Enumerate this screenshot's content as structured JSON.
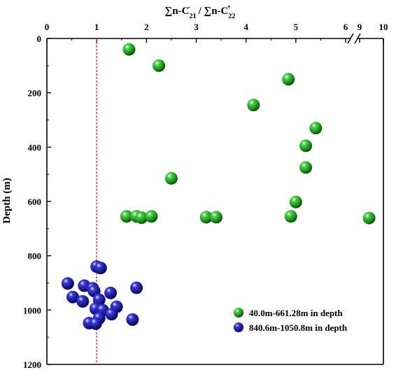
{
  "chart_data": {
    "type": "scatter",
    "title_parts": {
      "sum1": "∑n-C",
      "sub1": "21",
      "sup1": "-",
      "slash": " / ",
      "sum2": "∑n-C",
      "sub2": "22",
      "sup2": "+"
    },
    "ylabel": "Depth  (m)",
    "x_axis": {
      "position": "top",
      "break_between": [
        6,
        9
      ],
      "ticks": [
        0,
        1,
        2,
        3,
        4,
        5,
        6,
        9,
        10
      ],
      "tick_labels": [
        "0",
        "1",
        "2",
        "3",
        "4",
        "5",
        "6",
        "9",
        "10"
      ]
    },
    "y_axis": {
      "ylim": [
        0,
        1200
      ],
      "inverted": true,
      "ticks": [
        0,
        200,
        400,
        600,
        800,
        1000,
        1200
      ],
      "tick_labels": [
        "0",
        "200",
        "400",
        "600",
        "800",
        "1000",
        "1200"
      ]
    },
    "reference_line": {
      "x": 1,
      "style": "dashed",
      "color": "#d62728"
    },
    "legend_position": "bottom-right",
    "series": [
      {
        "name": "40.0m-661.28m in depth",
        "color": "#1f9e1f",
        "points": [
          {
            "x": 1.65,
            "y": 40
          },
          {
            "x": 2.25,
            "y": 100
          },
          {
            "x": 4.85,
            "y": 150
          },
          {
            "x": 4.15,
            "y": 245
          },
          {
            "x": 5.4,
            "y": 330
          },
          {
            "x": 5.2,
            "y": 395
          },
          {
            "x": 5.2,
            "y": 475
          },
          {
            "x": 2.5,
            "y": 515
          },
          {
            "x": 5.0,
            "y": 602
          },
          {
            "x": 1.6,
            "y": 655
          },
          {
            "x": 1.8,
            "y": 655
          },
          {
            "x": 1.9,
            "y": 660
          },
          {
            "x": 2.1,
            "y": 655
          },
          {
            "x": 3.2,
            "y": 658
          },
          {
            "x": 3.4,
            "y": 658
          },
          {
            "x": 4.9,
            "y": 655
          },
          {
            "x": 9.4,
            "y": 661
          }
        ]
      },
      {
        "name": "840.6m-1050.8m in depth",
        "color": "#1a1a9e",
        "points": [
          {
            "x": 1.0,
            "y": 840
          },
          {
            "x": 1.08,
            "y": 845
          },
          {
            "x": 0.42,
            "y": 902
          },
          {
            "x": 0.75,
            "y": 910
          },
          {
            "x": 0.92,
            "y": 920
          },
          {
            "x": 1.28,
            "y": 937
          },
          {
            "x": 1.8,
            "y": 918
          },
          {
            "x": 0.95,
            "y": 930
          },
          {
            "x": 0.52,
            "y": 952
          },
          {
            "x": 0.72,
            "y": 968
          },
          {
            "x": 1.05,
            "y": 962
          },
          {
            "x": 0.98,
            "y": 995
          },
          {
            "x": 1.12,
            "y": 1000
          },
          {
            "x": 1.4,
            "y": 988
          },
          {
            "x": 1.3,
            "y": 1015
          },
          {
            "x": 1.05,
            "y": 1030
          },
          {
            "x": 1.72,
            "y": 1035
          },
          {
            "x": 0.85,
            "y": 1048
          },
          {
            "x": 0.98,
            "y": 1050
          }
        ]
      }
    ]
  }
}
